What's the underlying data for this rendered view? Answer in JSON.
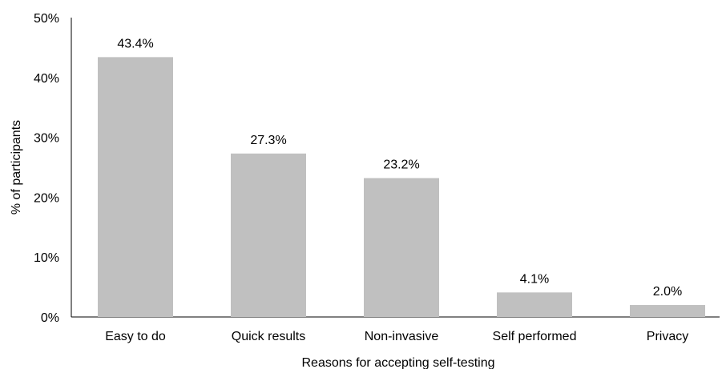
{
  "chart_data": {
    "type": "bar",
    "title": "",
    "xlabel": "Reasons for accepting self-testing",
    "ylabel": "% of participants",
    "categories": [
      "Easy to do",
      "Quick results",
      "Non-invasive",
      "Self performed",
      "Privacy"
    ],
    "values": [
      43.4,
      27.3,
      23.2,
      4.1,
      2.0
    ],
    "value_labels": [
      "43.4%",
      "27.3%",
      "23.2%",
      "4.1%",
      "2.0%"
    ],
    "ylim": [
      0,
      50
    ],
    "yticks": [
      0,
      10,
      20,
      30,
      40,
      50
    ],
    "ytick_labels": [
      "0%",
      "10%",
      "20%",
      "30%",
      "40%",
      "50%"
    ],
    "grid": false,
    "legend": "none",
    "bar_color": "#c0c0c0"
  }
}
